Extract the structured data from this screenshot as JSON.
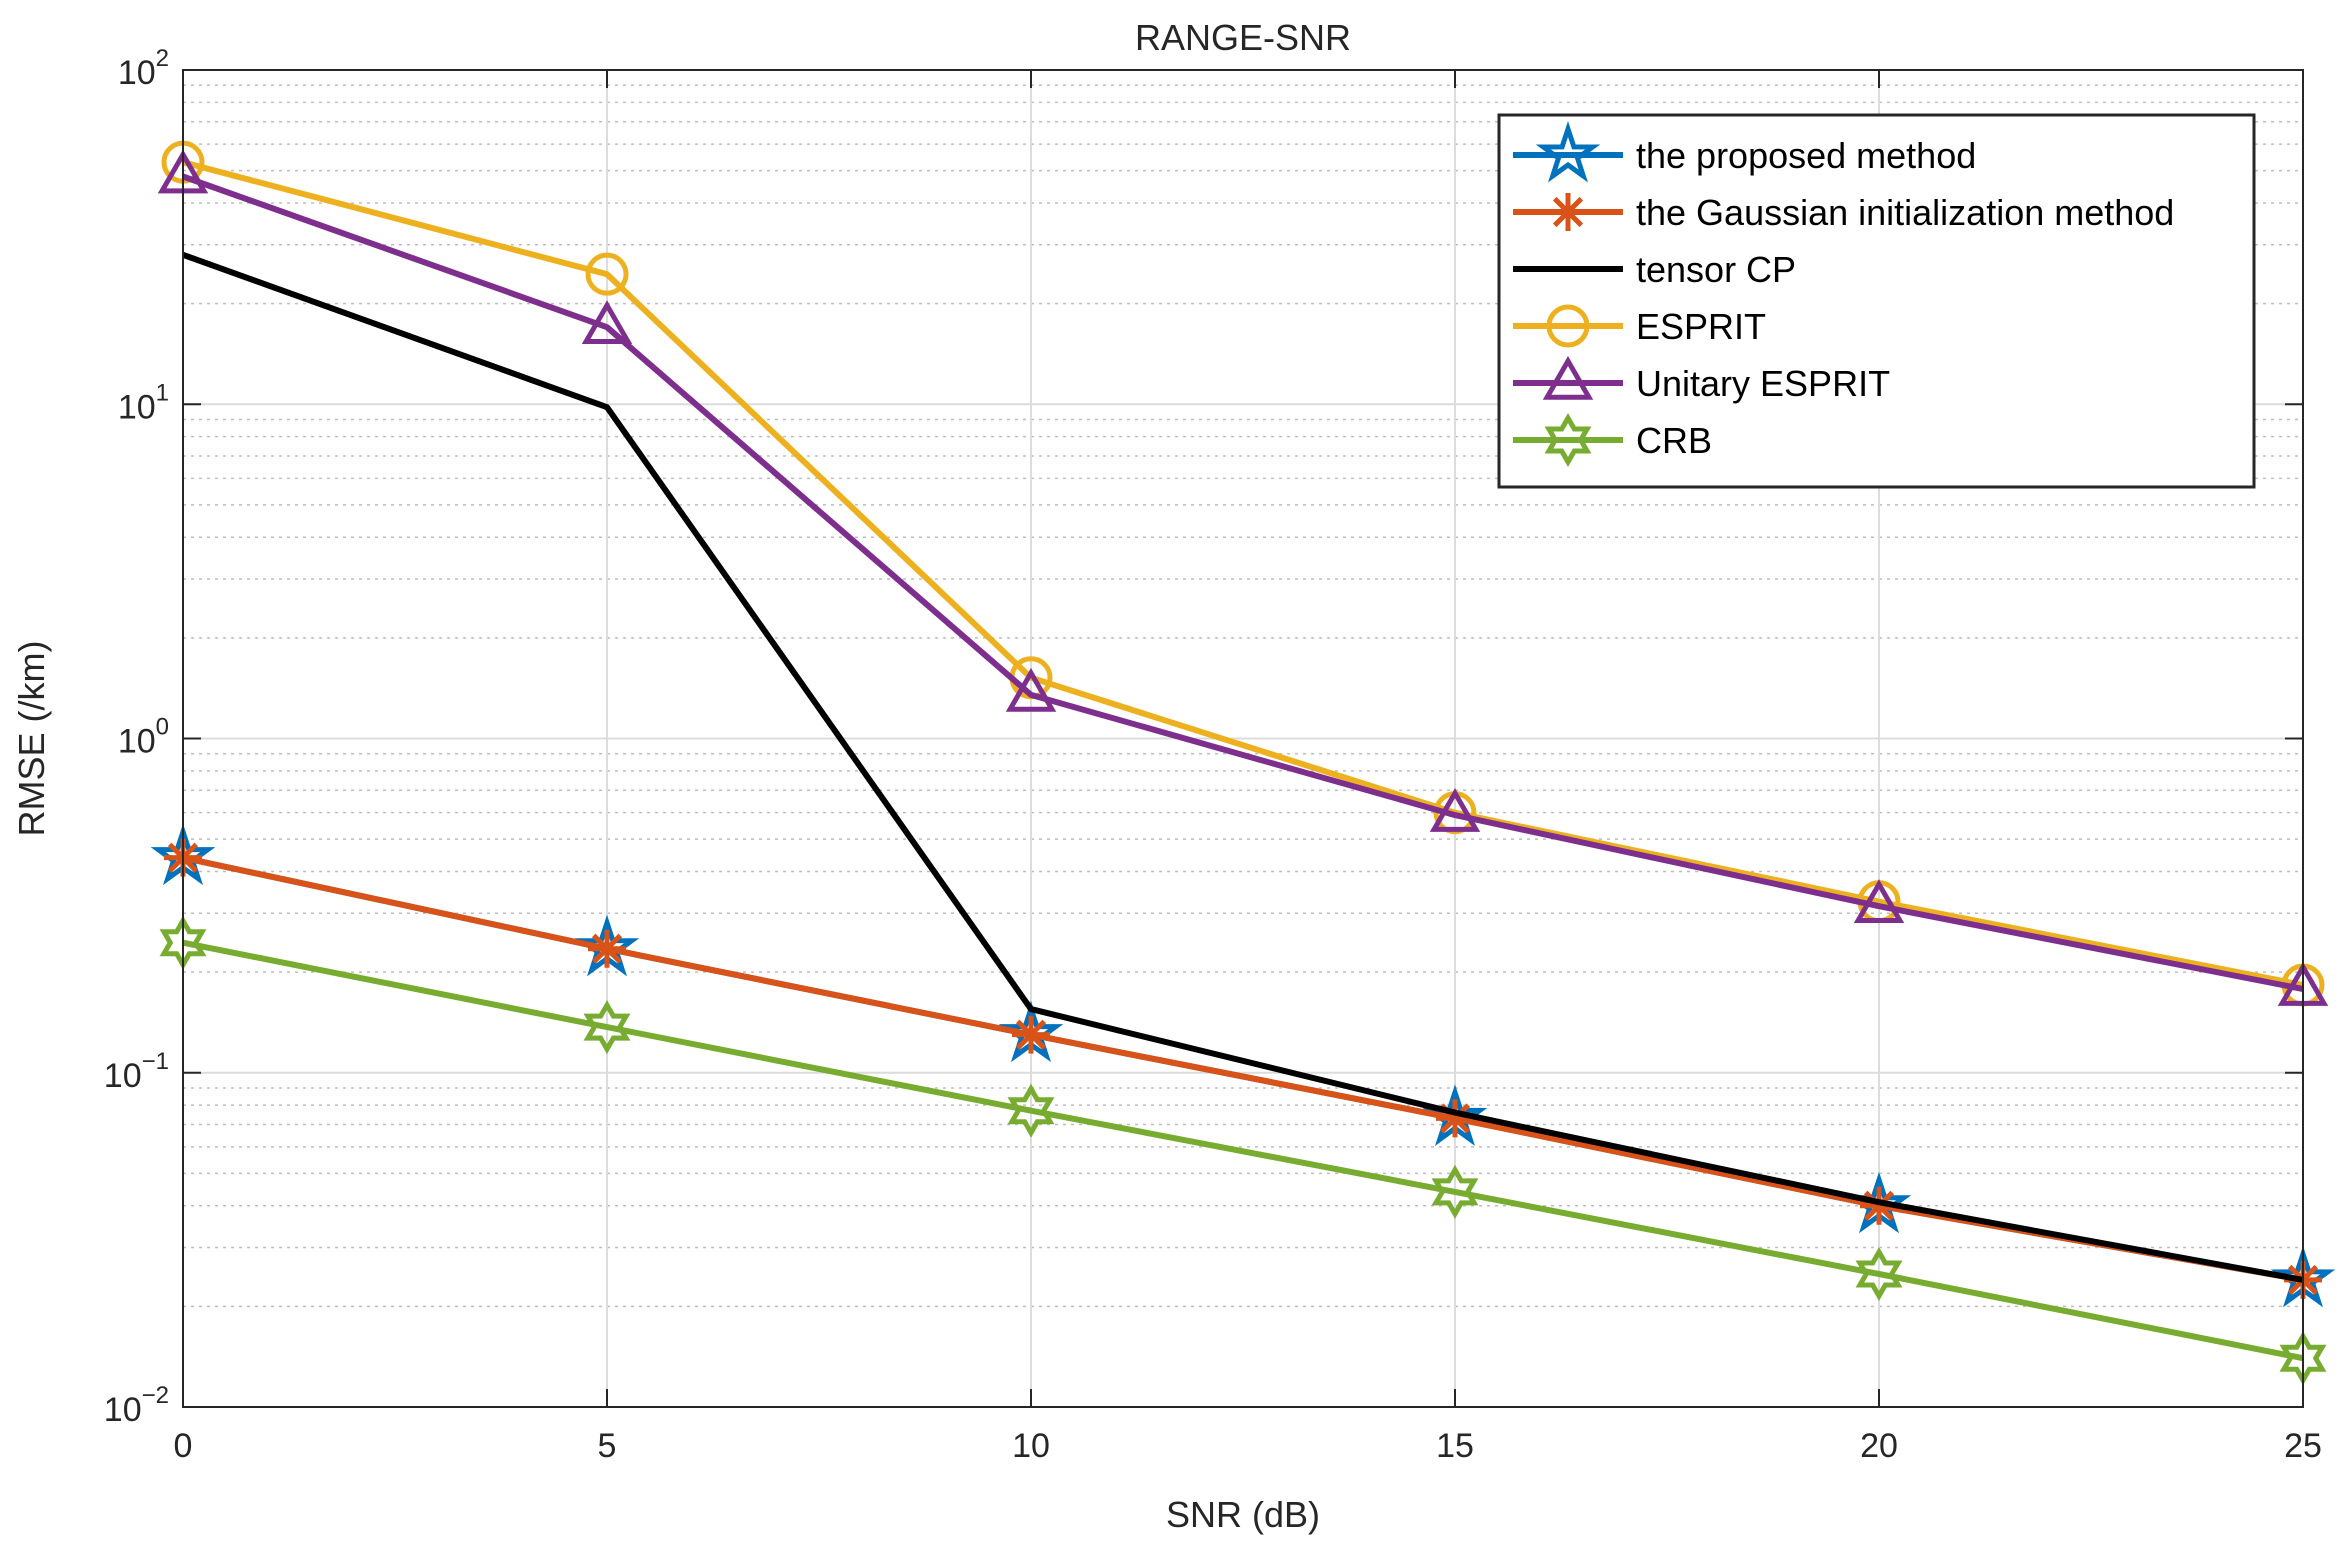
{
  "chart_data": {
    "type": "line",
    "title": "RANGE-SNR",
    "xlabel": "SNR (dB)",
    "ylabel": "RMSE (/km)",
    "x": [
      0,
      5,
      10,
      15,
      20,
      25
    ],
    "xlim": [
      0,
      25
    ],
    "ylim": [
      0.01,
      100
    ],
    "yscale": "log",
    "x_ticks": [
      0,
      5,
      10,
      15,
      20,
      25
    ],
    "y_ticks": [
      {
        "value": 0.01,
        "base": "10",
        "exp": "−2"
      },
      {
        "value": 0.1,
        "base": "10",
        "exp": "−1"
      },
      {
        "value": 1,
        "base": "10",
        "exp": "0"
      },
      {
        "value": 10,
        "base": "10",
        "exp": "1"
      },
      {
        "value": 100,
        "base": "10",
        "exp": "2"
      }
    ],
    "grid": true,
    "legend_position": "top-right",
    "series": [
      {
        "name": "the proposed method",
        "color": "#0072BD",
        "marker": "pentagram",
        "values": [
          0.44,
          0.235,
          0.13,
          0.073,
          0.04,
          0.024
        ]
      },
      {
        "name": "the Gaussian initialization method",
        "color": "#D95319",
        "marker": "asterisk",
        "values": [
          0.44,
          0.235,
          0.13,
          0.073,
          0.04,
          0.024
        ]
      },
      {
        "name": "tensor CP",
        "color": "#000000",
        "marker": "none",
        "values": [
          28,
          9.8,
          0.155,
          0.076,
          0.041,
          0.024
        ]
      },
      {
        "name": "ESPRIT",
        "color": "#EDB120",
        "marker": "circle",
        "values": [
          53,
          24.5,
          1.52,
          0.6,
          0.325,
          0.183
        ]
      },
      {
        "name": "Unitary ESPRIT",
        "color": "#7E2F8E",
        "marker": "triangle",
        "values": [
          48,
          17,
          1.35,
          0.59,
          0.315,
          0.178
        ]
      },
      {
        "name": "CRB",
        "color": "#77AC30",
        "marker": "hexagram",
        "values": [
          0.245,
          0.137,
          0.077,
          0.044,
          0.025,
          0.014
        ]
      }
    ]
  }
}
